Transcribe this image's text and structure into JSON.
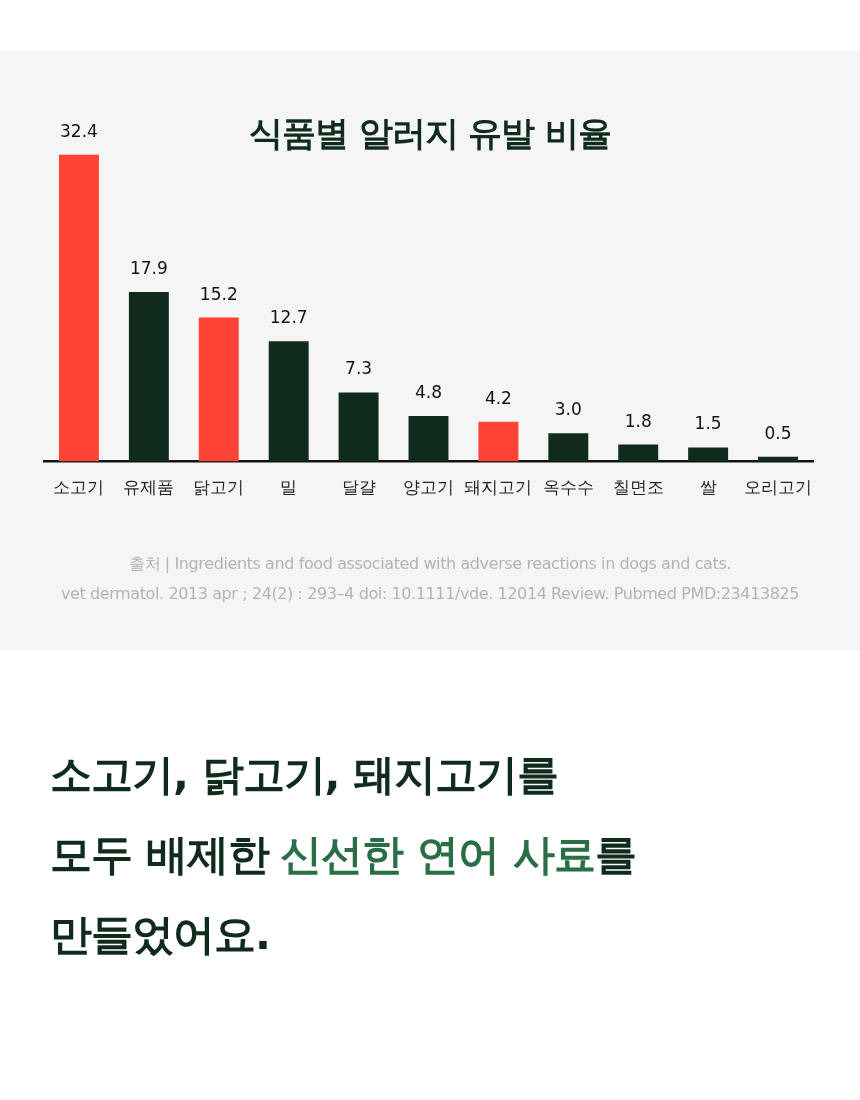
{
  "chart_data": {
    "type": "bar",
    "title": "식품별 알러지 유발 비율",
    "categories": [
      "소고기",
      "유제품",
      "닭고기",
      "밀",
      "달걀",
      "양고기",
      "돼지고기",
      "옥수수",
      "칠면조",
      "쌀",
      "오리고기"
    ],
    "values": [
      32.4,
      17.9,
      15.2,
      12.7,
      7.3,
      4.8,
      4.2,
      3.0,
      1.8,
      1.5,
      0.5
    ],
    "value_labels": [
      "32.4",
      "17.9",
      "15.2",
      "12.7",
      "7.3",
      "4.8",
      "4.2",
      "3.0",
      "1.8",
      "1.5",
      "0.5"
    ],
    "colors": [
      "#ff4436",
      "#0f2b1c",
      "#ff4436",
      "#0f2b1c",
      "#0f2b1c",
      "#0f2b1c",
      "#ff4436",
      "#0f2b1c",
      "#0f2b1c",
      "#0f2b1c",
      "#0f2b1c"
    ],
    "annotations": [
      "출처 | Ingredients and food associated with adverse reactions in dogs and cats.",
      "vet dermatol. 2013 apr ; 24(2) : 293–4 doi: 10.1111/vde. 12014 Review. Pubmed PMD:23413825",
      "소고기, 닭고기, 돼지고기를",
      "모두 배제한",
      "신선한 연어 사료",
      "를",
      "만들었어요."
    ]
  }
}
